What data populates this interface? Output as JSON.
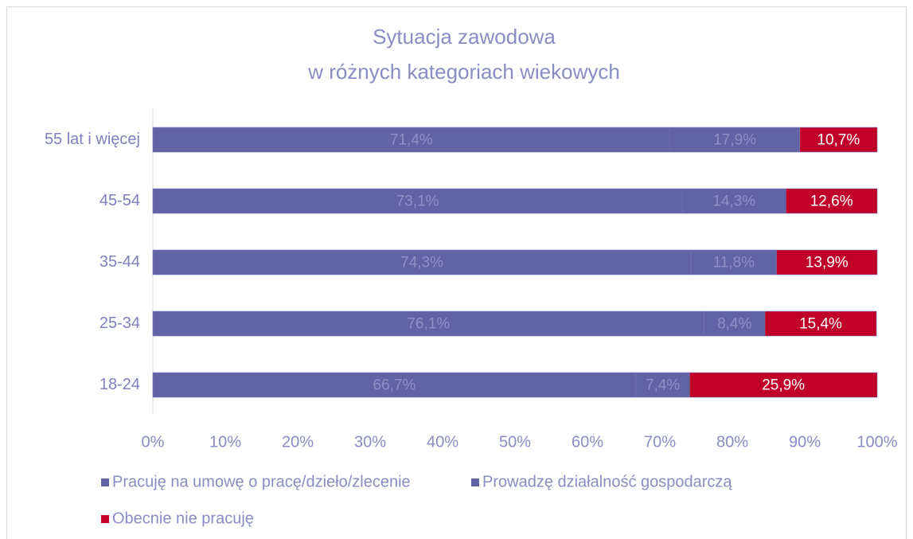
{
  "chart_data": {
    "type": "stacked_barh",
    "title": [
      "Sytuacja zawodowa",
      "w różnych kategoriach wiekowych"
    ],
    "categories": [
      "55 lat i więcej",
      "45-54",
      "35-44",
      "25-34",
      "18-24"
    ],
    "series": [
      {
        "name": "Pracuję na umowę o pracę/dzieło/zlecenie",
        "color": "#6063a6",
        "values": [
          71.4,
          73.1,
          74.3,
          76.1,
          66.7
        ],
        "value_labels": [
          "71,4%",
          "73,1%",
          "74,3%",
          "76,1%",
          "66,7%"
        ],
        "label_color": "#8d8fc6"
      },
      {
        "name": "Prowadzę działalność gospodarczą",
        "color": "#6063a6",
        "values": [
          17.9,
          14.3,
          11.8,
          8.4,
          7.4
        ],
        "value_labels": [
          "17,9%",
          "14,3%",
          "11,8%",
          "8,4%",
          "7,4%"
        ],
        "label_color": "#8d8fc6"
      },
      {
        "name": "Obecnie nie pracuję",
        "color": "#c00029",
        "values": [
          10.7,
          12.6,
          13.9,
          15.4,
          25.9
        ],
        "value_labels": [
          "10,7%",
          "12,6%",
          "13,9%",
          "15,4%",
          "25,9%"
        ],
        "label_color": "#ffffff"
      }
    ],
    "xlim": [
      0,
      100
    ],
    "xticks": [
      {
        "value": 0,
        "label": "0%"
      },
      {
        "value": 10,
        "label": "10%"
      },
      {
        "value": 20,
        "label": "20%"
      },
      {
        "value": 30,
        "label": "30%"
      },
      {
        "value": 40,
        "label": "40%"
      },
      {
        "value": 50,
        "label": "50%"
      },
      {
        "value": 60,
        "label": "60%"
      },
      {
        "value": 70,
        "label": "70%"
      },
      {
        "value": 80,
        "label": "80%"
      },
      {
        "value": 90,
        "label": "90%"
      },
      {
        "value": 100,
        "label": "100%"
      }
    ],
    "legend": "bottom-left"
  }
}
